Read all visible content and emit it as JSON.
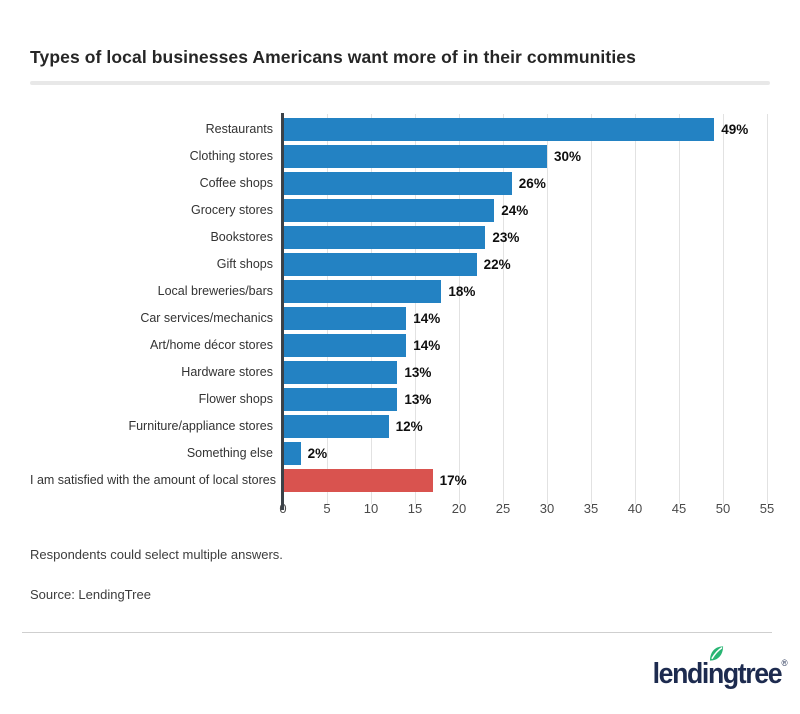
{
  "title": "Types of local businesses Americans want more of in their communities",
  "footnote": "Respondents could select multiple answers.",
  "source": "Source: LendingTree",
  "brand": {
    "logo_text": "lendingtree",
    "registered": "®"
  },
  "colors": {
    "bar": "#2382C3",
    "bar_highlight": "#D9534F",
    "axis_line": "#3B4248",
    "gridline": "#E2E2E2",
    "title_text": "#262626",
    "divider": "#E8E8E8",
    "logo_navy": "#1D2B4F",
    "leaf_green": "#28B573"
  },
  "chart_data": {
    "type": "bar",
    "orientation": "horizontal",
    "title": "Types of local businesses Americans want more of in their communities",
    "categories": [
      "Restaurants",
      "Clothing stores",
      "Coffee shops",
      "Grocery stores",
      "Bookstores",
      "Gift shops",
      "Local breweries/bars",
      "Car services/mechanics",
      "Art/home décor stores",
      "Hardware stores",
      "Flower shops",
      "Furniture/appliance stores",
      "Something else",
      "I am satisfied with the amount of local stores"
    ],
    "values": [
      49,
      30,
      26,
      24,
      23,
      22,
      18,
      14,
      14,
      13,
      13,
      12,
      2,
      17
    ],
    "unit": "%",
    "highlight_index": 13,
    "xlabel": "",
    "ylabel": "",
    "xlim": [
      0,
      55
    ],
    "xticks": [
      0,
      5,
      10,
      15,
      20,
      25,
      30,
      35,
      40,
      45,
      50,
      55
    ],
    "grid": true,
    "legend": false
  }
}
